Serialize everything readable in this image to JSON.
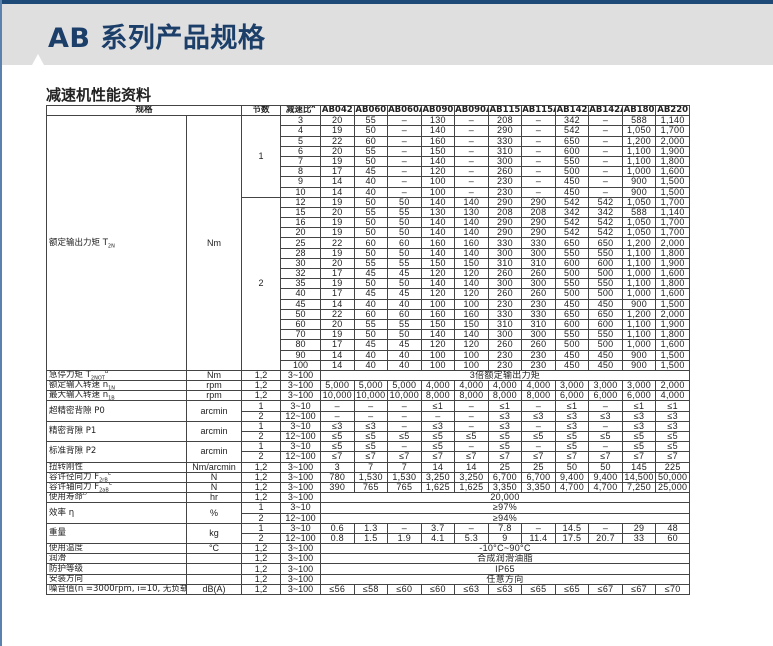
{
  "header": {
    "title": "AB 系列产品规格",
    "section_title": "减速机性能资料"
  },
  "colors": {
    "title": "#1c3f6a",
    "banner": "#e0dfe0",
    "bar": "#1e4a78"
  },
  "table": {
    "head": {
      "spec": "规格",
      "stage": "节数",
      "ratio": "减速比",
      "ratio_sup": "A",
      "models": [
        "AB042",
        "AB060",
        "AB060A",
        "AB090",
        "AB090A",
        "AB115",
        "AB115A",
        "AB142",
        "AB142A",
        "AB180",
        "AB220"
      ]
    },
    "torque": {
      "label": "额定输出力矩 T",
      "sub": "2N",
      "unit": "Nm",
      "stages": [
        {
          "stage": "1",
          "rows": [
            {
              "ratio": "3",
              "values": [
                "20",
                "55",
                "–",
                "130",
                "–",
                "208",
                "–",
                "342",
                "–",
                "588",
                "1,140"
              ]
            },
            {
              "ratio": "4",
              "values": [
                "19",
                "50",
                "–",
                "140",
                "–",
                "290",
                "–",
                "542",
                "–",
                "1,050",
                "1,700"
              ]
            },
            {
              "ratio": "5",
              "values": [
                "22",
                "60",
                "–",
                "160",
                "–",
                "330",
                "–",
                "650",
                "–",
                "1,200",
                "2,000"
              ]
            },
            {
              "ratio": "6",
              "values": [
                "20",
                "55",
                "–",
                "150",
                "–",
                "310",
                "–",
                "600",
                "–",
                "1,100",
                "1,900"
              ]
            },
            {
              "ratio": "7",
              "values": [
                "19",
                "50",
                "–",
                "140",
                "–",
                "300",
                "–",
                "550",
                "–",
                "1,100",
                "1,800"
              ]
            },
            {
              "ratio": "8",
              "values": [
                "17",
                "45",
                "–",
                "120",
                "–",
                "260",
                "–",
                "500",
                "–",
                "1,000",
                "1,600"
              ]
            },
            {
              "ratio": "9",
              "values": [
                "14",
                "40",
                "–",
                "100",
                "–",
                "230",
                "–",
                "450",
                "–",
                "900",
                "1,500"
              ]
            },
            {
              "ratio": "10",
              "values": [
                "14",
                "40",
                "–",
                "100",
                "–",
                "230",
                "–",
                "450",
                "–",
                "900",
                "1,500"
              ]
            }
          ]
        },
        {
          "stage": "2",
          "rows": [
            {
              "ratio": "12",
              "values": [
                "19",
                "50",
                "50",
                "140",
                "140",
                "290",
                "290",
                "542",
                "542",
                "1,050",
                "1,700"
              ]
            },
            {
              "ratio": "15",
              "values": [
                "20",
                "55",
                "55",
                "130",
                "130",
                "208",
                "208",
                "342",
                "342",
                "588",
                "1,140"
              ]
            },
            {
              "ratio": "16",
              "values": [
                "19",
                "50",
                "50",
                "140",
                "140",
                "290",
                "290",
                "542",
                "542",
                "1,050",
                "1,700"
              ]
            },
            {
              "ratio": "20",
              "values": [
                "19",
                "50",
                "50",
                "140",
                "140",
                "290",
                "290",
                "542",
                "542",
                "1,050",
                "1,700"
              ]
            },
            {
              "ratio": "25",
              "values": [
                "22",
                "60",
                "60",
                "160",
                "160",
                "330",
                "330",
                "650",
                "650",
                "1,200",
                "2,000"
              ]
            },
            {
              "ratio": "28",
              "values": [
                "19",
                "50",
                "50",
                "140",
                "140",
                "300",
                "300",
                "550",
                "550",
                "1,100",
                "1,800"
              ]
            },
            {
              "ratio": "30",
              "values": [
                "20",
                "55",
                "55",
                "150",
                "150",
                "310",
                "310",
                "600",
                "600",
                "1,100",
                "1,900"
              ]
            },
            {
              "ratio": "32",
              "values": [
                "17",
                "45",
                "45",
                "120",
                "120",
                "260",
                "260",
                "500",
                "500",
                "1,000",
                "1,600"
              ]
            },
            {
              "ratio": "35",
              "values": [
                "19",
                "50",
                "50",
                "140",
                "140",
                "300",
                "300",
                "550",
                "550",
                "1,100",
                "1,800"
              ]
            },
            {
              "ratio": "40",
              "values": [
                "17",
                "45",
                "45",
                "120",
                "120",
                "260",
                "260",
                "500",
                "500",
                "1,000",
                "1,600"
              ]
            },
            {
              "ratio": "45",
              "values": [
                "14",
                "40",
                "40",
                "100",
                "100",
                "230",
                "230",
                "450",
                "450",
                "900",
                "1,500"
              ]
            },
            {
              "ratio": "50",
              "values": [
                "22",
                "60",
                "60",
                "160",
                "160",
                "330",
                "330",
                "650",
                "650",
                "1,200",
                "2,000"
              ]
            },
            {
              "ratio": "60",
              "values": [
                "20",
                "55",
                "55",
                "150",
                "150",
                "310",
                "310",
                "600",
                "600",
                "1,100",
                "1,900"
              ]
            },
            {
              "ratio": "70",
              "values": [
                "19",
                "50",
                "50",
                "140",
                "140",
                "300",
                "300",
                "550",
                "550",
                "1,100",
                "1,800"
              ]
            },
            {
              "ratio": "80",
              "values": [
                "17",
                "45",
                "45",
                "120",
                "120",
                "260",
                "260",
                "500",
                "500",
                "1,000",
                "1,600"
              ]
            },
            {
              "ratio": "90",
              "values": [
                "14",
                "40",
                "40",
                "100",
                "100",
                "230",
                "230",
                "450",
                "450",
                "900",
                "1,500"
              ]
            },
            {
              "ratio": "100",
              "values": [
                "14",
                "40",
                "40",
                "100",
                "100",
                "230",
                "230",
                "450",
                "450",
                "900",
                "1,500"
              ]
            }
          ]
        }
      ]
    },
    "specs": [
      {
        "label": "急停力矩 T",
        "sub": "2NOT",
        "sup": "B",
        "unit": "Nm",
        "rows": [
          {
            "stage": "1,2",
            "ratio": "3~100",
            "merged": "3倍额定输出力矩"
          }
        ]
      },
      {
        "label": "额定输入转速 n",
        "sub": "1N",
        "unit": "rpm",
        "rows": [
          {
            "stage": "1,2",
            "ratio": "3~100",
            "values": [
              "5,000",
              "5,000",
              "5,000",
              "4,000",
              "4,000",
              "4,000",
              "4,000",
              "3,000",
              "3,000",
              "3,000",
              "2,000"
            ]
          }
        ]
      },
      {
        "label": "最大输入转速 n",
        "sub": "1B",
        "unit": "rpm",
        "rows": [
          {
            "stage": "1,2",
            "ratio": "3~100",
            "values": [
              "10,000",
              "10,000",
              "10,000",
              "8,000",
              "8,000",
              "8,000",
              "8,000",
              "6,000",
              "6,000",
              "6,000",
              "4,000"
            ]
          }
        ]
      },
      {
        "label": "超精密背隙 P0",
        "unit": "arcmin",
        "rows": [
          {
            "stage": "1",
            "ratio": "3~10",
            "values": [
              "–",
              "–",
              "–",
              "≤1",
              "–",
              "≤1",
              "–",
              "≤1",
              "–",
              "≤1",
              "≤1"
            ]
          },
          {
            "stage": "2",
            "ratio": "12~100",
            "values": [
              "–",
              "–",
              "–",
              "–",
              "–",
              "≤3",
              "≤3",
              "≤3",
              "≤3",
              "≤3",
              "≤3"
            ]
          }
        ]
      },
      {
        "label": "精密背隙 P1",
        "unit": "arcmin",
        "rows": [
          {
            "stage": "1",
            "ratio": "3~10",
            "values": [
              "≤3",
              "≤3",
              "–",
              "≤3",
              "–",
              "≤3",
              "–",
              "≤3",
              "–",
              "≤3",
              "≤3"
            ]
          },
          {
            "stage": "2",
            "ratio": "12~100",
            "values": [
              "≤5",
              "≤5",
              "≤5",
              "≤5",
              "≤5",
              "≤5",
              "≤5",
              "≤5",
              "≤5",
              "≤5",
              "≤5"
            ]
          }
        ]
      },
      {
        "label": "标准背隙 P2",
        "unit": "arcmin",
        "rows": [
          {
            "stage": "1",
            "ratio": "3~10",
            "values": [
              "≤5",
              "≤5",
              "–",
              "≤5",
              "–",
              "≤5",
              "–",
              "≤5",
              "–",
              "≤5",
              "≤5"
            ]
          },
          {
            "stage": "2",
            "ratio": "12~100",
            "values": [
              "≤7",
              "≤7",
              "≤7",
              "≤7",
              "≤7",
              "≤7",
              "≤7",
              "≤7",
              "≤7",
              "≤7",
              "≤7"
            ]
          }
        ]
      },
      {
        "label": "扭转刚性",
        "unit": "Nm/arcmin",
        "rows": [
          {
            "stage": "1,2",
            "ratio": "3~100",
            "values": [
              "3",
              "7",
              "7",
              "14",
              "14",
              "25",
              "25",
              "50",
              "50",
              "145",
              "225"
            ]
          }
        ]
      },
      {
        "label": "容许径向力 F",
        "sub": "2rB",
        "sup": "C",
        "unit": "N",
        "rows": [
          {
            "stage": "1,2",
            "ratio": "3~100",
            "values": [
              "780",
              "1,530",
              "1,530",
              "3,250",
              "3,250",
              "6,700",
              "6,700",
              "9,400",
              "9,400",
              "14,500",
              "50,000"
            ]
          }
        ]
      },
      {
        "label": "容许轴向力 F",
        "sub": "2aB",
        "sup": "C",
        "unit": "N",
        "rows": [
          {
            "stage": "1,2",
            "ratio": "3~100",
            "values": [
              "390",
              "765",
              "765",
              "1,625",
              "1,625",
              "3,350",
              "3,350",
              "4,700",
              "4,700",
              "7,250",
              "25,000"
            ]
          }
        ]
      },
      {
        "label": "使用寿命",
        "sup": "D",
        "unit": "hr",
        "rows": [
          {
            "stage": "1,2",
            "ratio": "3~100",
            "merged": "20,000"
          }
        ]
      },
      {
        "label": "效率 η",
        "unit": "%",
        "rows": [
          {
            "stage": "1",
            "ratio": "3~10",
            "merged": "≥97%"
          },
          {
            "stage": "2",
            "ratio": "12~100",
            "merged": "≥94%"
          }
        ]
      },
      {
        "label": "重量",
        "unit": "kg",
        "rows": [
          {
            "stage": "1",
            "ratio": "3~10",
            "values": [
              "0.6",
              "1.3",
              "–",
              "3.7",
              "–",
              "7.8",
              "–",
              "14.5",
              "–",
              "29",
              "48"
            ]
          },
          {
            "stage": "2",
            "ratio": "12~100",
            "values": [
              "0.8",
              "1.5",
              "1.9",
              "4.1",
              "5.3",
              "9",
              "11.4",
              "17.5",
              "20.7",
              "33",
              "60"
            ]
          }
        ]
      },
      {
        "label": "使用温度",
        "unit": "°C",
        "rows": [
          {
            "stage": "1,2",
            "ratio": "3~100",
            "merged": "-10°C~90°C"
          }
        ]
      },
      {
        "label": "润滑",
        "unit": "",
        "rows": [
          {
            "stage": "1,2",
            "ratio": "3~100",
            "merged": "合成润滑油脂"
          }
        ]
      },
      {
        "label": "防护等级",
        "unit": "",
        "rows": [
          {
            "stage": "1,2",
            "ratio": "3~100",
            "merged": "IP65"
          }
        ]
      },
      {
        "label": "安装方向",
        "unit": "",
        "rows": [
          {
            "stage": "1,2",
            "ratio": "3~100",
            "merged": "任意方向"
          }
        ]
      },
      {
        "label": "噪音值(n =3000rpm, i=10, 无负载 )",
        "sup": "E",
        "unit": "dB(A)",
        "rows": [
          {
            "stage": "1,2",
            "ratio": "3~100",
            "values": [
              "≤56",
              "≤58",
              "≤60",
              "≤60",
              "≤63",
              "≤63",
              "≤65",
              "≤65",
              "≤67",
              "≤67",
              "≤70"
            ]
          }
        ]
      }
    ]
  }
}
